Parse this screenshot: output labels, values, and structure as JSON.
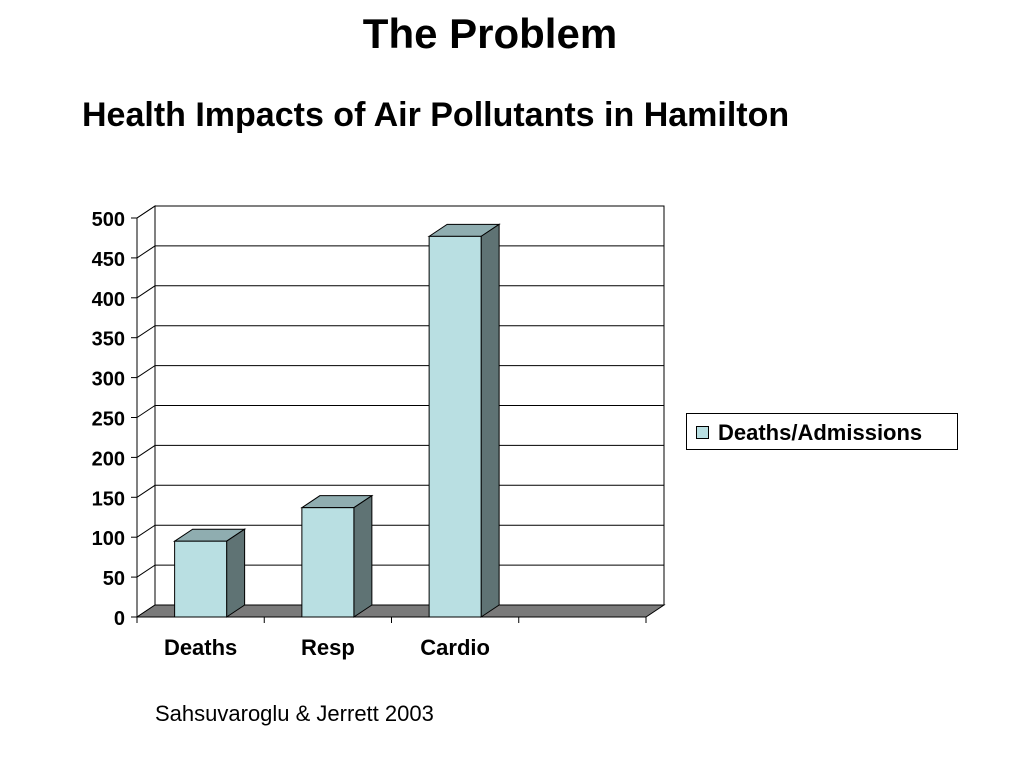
{
  "slide": {
    "title": "The Problem",
    "subtitle": "Health Impacts of Air Pollutants in Hamilton",
    "source": "Sahsuvaroglu & Jerrett 2003"
  },
  "colors": {
    "bar_front": "#b9dfe2",
    "bar_top": "#8fadb0",
    "bar_side": "#5f7374",
    "floor": "#7a7a7a",
    "gridline": "#000000",
    "background": "#ffffff"
  },
  "chart_data": {
    "type": "bar",
    "categories": [
      "Deaths",
      "Resp",
      "Cardio",
      ""
    ],
    "series": [
      {
        "name": "Deaths/Admissions",
        "values": [
          95,
          137,
          477,
          null
        ]
      }
    ],
    "title": "",
    "xlabel": "",
    "ylabel": "",
    "ylim": [
      0,
      500
    ],
    "yticks": [
      0,
      50,
      100,
      150,
      200,
      250,
      300,
      350,
      400,
      450,
      500
    ],
    "grid": true,
    "legend_position": "right",
    "style": "3d-column"
  }
}
